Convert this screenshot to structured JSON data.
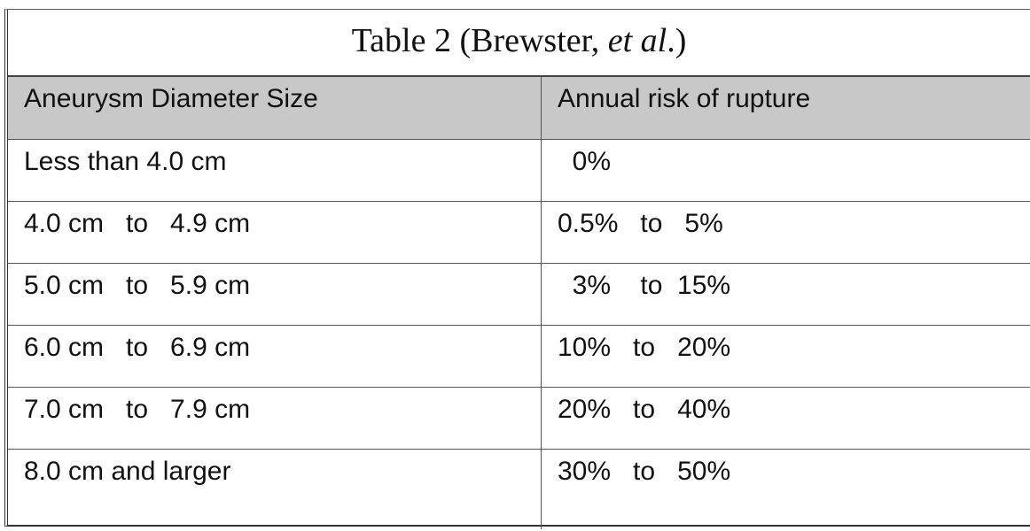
{
  "title_parts": [
    "Table 2 (Brewster, ",
    "et al",
    ".)"
  ],
  "table": {
    "header": [
      "Aneurysm Diameter Size",
      "Annual risk of rupture"
    ],
    "rows": [
      [
        "Less than 4.0 cm",
        "  0%"
      ],
      [
        "4.0 cm   to   4.9 cm",
        "0.5%   to   5%"
      ],
      [
        "5.0 cm   to   5.9 cm",
        "  3%    to  15%"
      ],
      [
        "6.0 cm   to   6.9 cm",
        "10%   to   20%"
      ],
      [
        "7.0 cm   to   7.9 cm",
        "20%   to   40%"
      ],
      [
        "8.0 cm and larger",
        "30%   to   50%"
      ]
    ]
  }
}
